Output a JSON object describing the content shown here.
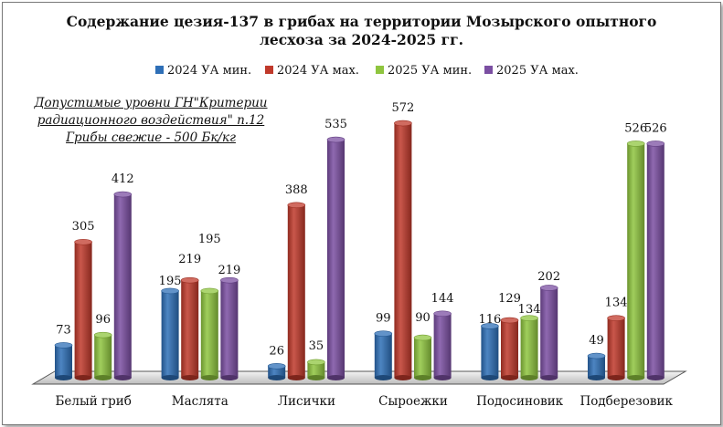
{
  "chart_data": {
    "type": "bar",
    "title_lines": [
      "Содержание цезия-137 в грибах на территории Мозырского опытного",
      "лесхоза за 2024-2025 гг."
    ],
    "categories": [
      "Белый гриб",
      "Маслята",
      "Лисички",
      "Сыроежки",
      "Подосиновик",
      "Подберезовик"
    ],
    "series": [
      {
        "name": "2024 УА мин.",
        "color": "#2e6fb7",
        "values": [
          73,
          195,
          26,
          99,
          116,
          49
        ]
      },
      {
        "name": "2024 УА мах.",
        "color": "#c0392b",
        "values": [
          305,
          219,
          388,
          572,
          129,
          134
        ]
      },
      {
        "name": "2025 УА мин.",
        "color": "#8fc53f",
        "values": [
          96,
          195,
          35,
          90,
          134,
          526
        ]
      },
      {
        "name": "2025 УА мах.",
        "color": "#7b4fa2",
        "values": [
          412,
          219,
          535,
          144,
          202,
          526
        ]
      }
    ],
    "ylim": [
      0,
      600
    ],
    "grid": false,
    "legend_position": "top",
    "annotation_lines": [
      "Допустимые уровни ГН\"Критерии",
      "радиационного воздействия\" п.12",
      "Грибы свежие - 500 Бк/кг"
    ]
  }
}
